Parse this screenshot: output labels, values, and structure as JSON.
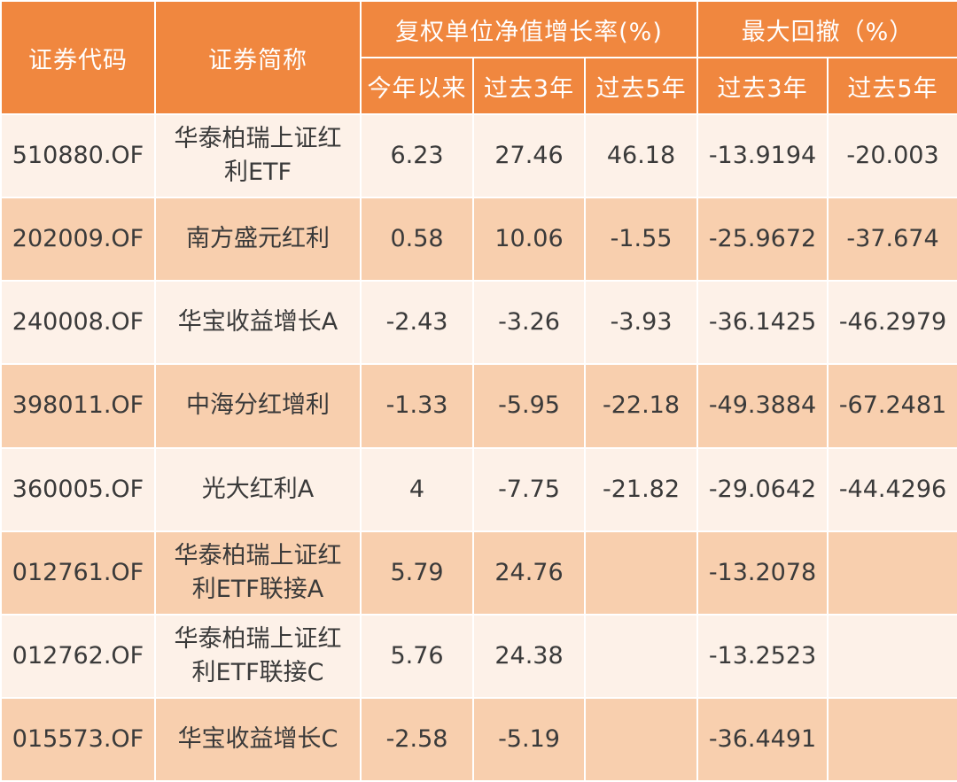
{
  "table": {
    "header": {
      "code": "证券代码",
      "name": "证券简称",
      "growth_group": "复权单位净值增长率(%)",
      "drawdown_group": "最大回撤（%）",
      "ytd": "今年以来",
      "growth_3y": "过去3年",
      "growth_5y": "过去5年",
      "dd_3y": "过去3年",
      "dd_5y": "过去5年"
    },
    "rows": [
      {
        "code": "510880.OF",
        "name_line1": "华泰柏瑞上证红",
        "name_line2": "利ETF",
        "ytd": "6.23",
        "growth_3y": "27.46",
        "growth_5y": "46.18",
        "dd_3y": "-13.9194",
        "dd_5y": "-20.003"
      },
      {
        "code": "202009.OF",
        "name_line1": "南方盛元红利",
        "name_line2": "",
        "ytd": "0.58",
        "growth_3y": "10.06",
        "growth_5y": "-1.55",
        "dd_3y": "-25.9672",
        "dd_5y": "-37.674"
      },
      {
        "code": "240008.OF",
        "name_line1": "华宝收益增长A",
        "name_line2": "",
        "ytd": "-2.43",
        "growth_3y": "-3.26",
        "growth_5y": "-3.93",
        "dd_3y": "-36.1425",
        "dd_5y": "-46.2979"
      },
      {
        "code": "398011.OF",
        "name_line1": "中海分红增利",
        "name_line2": "",
        "ytd": "-1.33",
        "growth_3y": "-5.95",
        "growth_5y": "-22.18",
        "dd_3y": "-49.3884",
        "dd_5y": "-67.2481"
      },
      {
        "code": "360005.OF",
        "name_line1": "光大红利A",
        "name_line2": "",
        "ytd": "4",
        "growth_3y": "-7.75",
        "growth_5y": "-21.82",
        "dd_3y": "-29.0642",
        "dd_5y": "-44.4296"
      },
      {
        "code": "012761.OF",
        "name_line1": "华泰柏瑞上证红",
        "name_line2": "利ETF联接A",
        "ytd": "5.79",
        "growth_3y": "24.76",
        "growth_5y": "",
        "dd_3y": "-13.2078",
        "dd_5y": ""
      },
      {
        "code": "012762.OF",
        "name_line1": "华泰柏瑞上证红",
        "name_line2": "利ETF联接C",
        "ytd": "5.76",
        "growth_3y": "24.38",
        "growth_5y": "",
        "dd_3y": "-13.2523",
        "dd_5y": ""
      },
      {
        "code": "015573.OF",
        "name_line1": "华宝收益增长C",
        "name_line2": "",
        "ytd": "-2.58",
        "growth_3y": "-5.19",
        "growth_5y": "",
        "dd_3y": "-36.4491",
        "dd_5y": ""
      }
    ]
  },
  "colors": {
    "header_bg": "#f0873f",
    "header_text": "#ffffff",
    "row_light": "#fdf1e8",
    "row_dark": "#f8cfae",
    "cell_text": "#3a3a3a"
  }
}
